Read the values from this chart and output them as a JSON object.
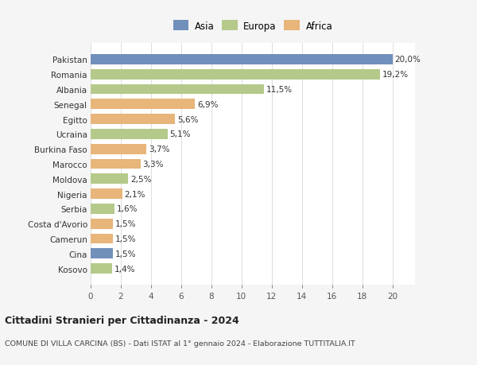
{
  "categories": [
    "Kosovo",
    "Cina",
    "Camerun",
    "Costa d'Avorio",
    "Serbia",
    "Nigeria",
    "Moldova",
    "Marocco",
    "Burkina Faso",
    "Ucraina",
    "Egitto",
    "Senegal",
    "Albania",
    "Romania",
    "Pakistan"
  ],
  "values": [
    1.4,
    1.5,
    1.5,
    1.5,
    1.6,
    2.1,
    2.5,
    3.3,
    3.7,
    5.1,
    5.6,
    6.9,
    11.5,
    19.2,
    20.0
  ],
  "labels": [
    "1,4%",
    "1,5%",
    "1,5%",
    "1,5%",
    "1,6%",
    "2,1%",
    "2,5%",
    "3,3%",
    "3,7%",
    "5,1%",
    "5,6%",
    "6,9%",
    "11,5%",
    "19,2%",
    "20,0%"
  ],
  "continents": [
    "Europa",
    "Asia",
    "Africa",
    "Africa",
    "Europa",
    "Africa",
    "Europa",
    "Africa",
    "Africa",
    "Europa",
    "Africa",
    "Africa",
    "Europa",
    "Europa",
    "Asia"
  ],
  "colors": {
    "Asia": "#7090bb",
    "Europa": "#b5c98a",
    "Africa": "#e8b57a"
  },
  "legend": [
    "Asia",
    "Europa",
    "Africa"
  ],
  "legend_colors": [
    "#7090bb",
    "#b5c98a",
    "#e8b57a"
  ],
  "title": "Cittadini Stranieri per Cittadinanza - 2024",
  "subtitle": "COMUNE DI VILLA CARCINA (BS) - Dati ISTAT al 1° gennaio 2024 - Elaborazione TUTTITALIA.IT",
  "xlabel_ticks": [
    0,
    2,
    4,
    6,
    8,
    10,
    12,
    14,
    16,
    18,
    20
  ],
  "xlim": [
    0,
    21.5
  ],
  "bg_color": "#f5f5f5",
  "plot_bg_color": "#ffffff",
  "grid_color": "#dddddd"
}
